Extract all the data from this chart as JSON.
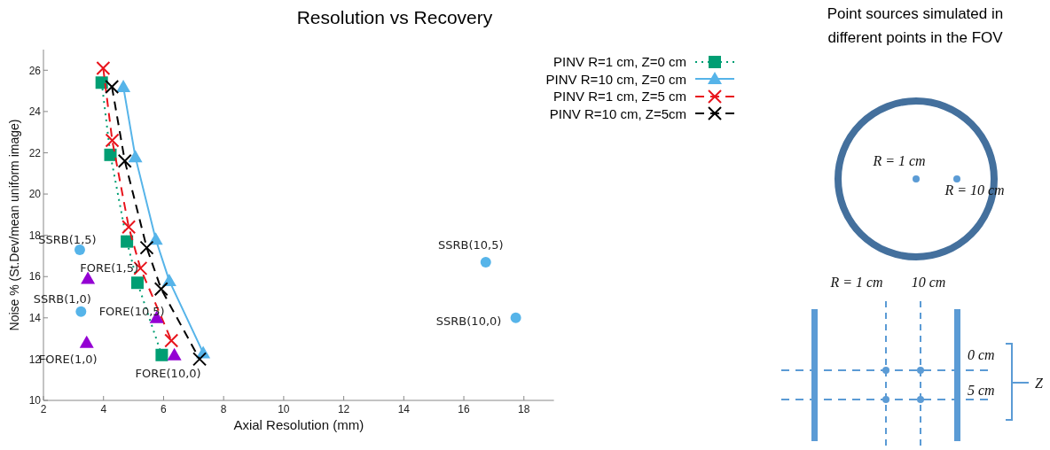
{
  "chart_data": {
    "type": "line",
    "title": "Resolution vs Recovery",
    "xlabel": "Axial Resolution (mm)",
    "ylabel": "Noise % (St.Dev/mean uniform image)",
    "xlim": [
      2,
      19
    ],
    "xticks": [
      2,
      4,
      6,
      8,
      10,
      12,
      14,
      16,
      18
    ],
    "ylim": [
      10,
      27
    ],
    "yticks": [
      10,
      12,
      14,
      16,
      18,
      20,
      22,
      24,
      26
    ],
    "legend": "top right",
    "series": [
      {
        "name": "PINV R=1 cm, Z=0 cm",
        "color": "#009e73",
        "marker": "square",
        "line_style": "dotted",
        "x": [
          3.94,
          4.23,
          4.78,
          5.13,
          5.94
        ],
        "values": [
          25.4,
          21.9,
          17.7,
          15.7,
          12.2
        ]
      },
      {
        "name": "PINV R=10 cm, Z=0 cm",
        "color": "#56b4e9",
        "marker": "triangle",
        "line_style": "solid",
        "x": [
          4.66,
          5.06,
          5.74,
          6.19,
          7.32
        ],
        "values": [
          25.2,
          21.8,
          17.8,
          15.8,
          12.3
        ]
      },
      {
        "name": "PINV R=1 cm, Z=5 cm",
        "color": "#e8141c",
        "marker": "cross",
        "line_style": "dashed",
        "x": [
          3.99,
          4.29,
          4.84,
          5.23,
          6.26
        ],
        "values": [
          26.1,
          22.6,
          18.4,
          16.4,
          12.9
        ]
      },
      {
        "name": "PINV R=10 cm, Z=5cm",
        "color": "#000000",
        "marker": "cross",
        "line_style": "dashed",
        "x": [
          4.28,
          4.71,
          5.44,
          5.92,
          7.2
        ],
        "values": [
          25.2,
          21.6,
          17.4,
          15.4,
          12.0
        ]
      },
      {
        "type": "scatter",
        "color": "#56b4e9",
        "marker": "circle",
        "x": [
          3.21,
          3.25,
          16.73,
          17.73
        ],
        "values": [
          17.3,
          14.3,
          16.7,
          14.0
        ]
      },
      {
        "type": "scatter",
        "color": "#9400d3",
        "marker": "triangle",
        "x": [
          3.48,
          3.44,
          5.77,
          6.36
        ],
        "values": [
          15.9,
          12.8,
          14.0,
          12.2
        ]
      }
    ],
    "annotations": [
      {
        "text": "SSRB(1,5)",
        "x": 3.21,
        "y": 17.3
      },
      {
        "text": "FORE(1,5)",
        "x": 3.48,
        "y": 15.9
      },
      {
        "text": "SSRB(1,0)",
        "x": 3.25,
        "y": 14.3
      },
      {
        "text": "FORE(1,0)",
        "x": 3.44,
        "y": 12.8
      },
      {
        "text": "FORE(10,5)",
        "x": 5.77,
        "y": 14.0
      },
      {
        "text": "FORE(10,0)",
        "x": 6.36,
        "y": 12.2
      },
      {
        "text": "SSRB(10,5)",
        "x": 16.73,
        "y": 16.7
      },
      {
        "text": "SSRB(10,0)",
        "x": 17.73,
        "y": 14.0
      },
      "Point sources simulated in different points in the FOV",
      "R = 1 cm",
      "R = 10 cm",
      "R = 1 cm",
      "10 cm",
      "0 cm",
      "5 cm",
      "Z"
    ]
  }
}
